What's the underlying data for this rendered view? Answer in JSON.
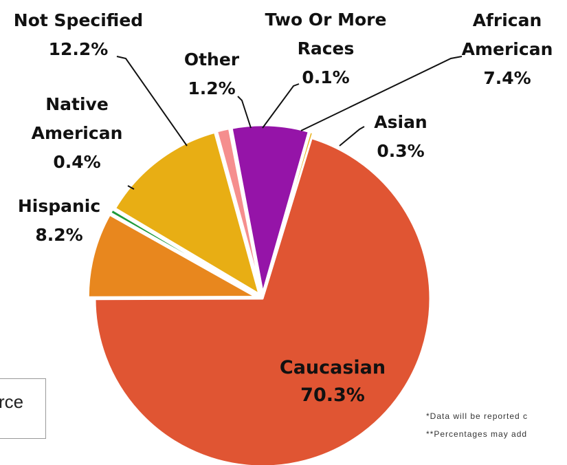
{
  "chart_data": {
    "type": "pie",
    "slices": [
      {
        "label": "Caucasian",
        "label_lines": [
          "Caucasian",
          "70.3%"
        ],
        "value": 70.3,
        "display": "70.3%",
        "color": "#E05533"
      },
      {
        "label": "Hispanic",
        "label_lines": [
          "Hispanic",
          "8.2%"
        ],
        "value": 8.2,
        "display": "8.2%",
        "color": "#E8871E"
      },
      {
        "label": "Native American",
        "label_lines": [
          "Native",
          "American",
          "0.4%"
        ],
        "value": 0.4,
        "display": "0.4%",
        "color": "#1E9A3A"
      },
      {
        "label": "Not Specified",
        "label_lines": [
          "Not Specified",
          "12.2%"
        ],
        "value": 12.2,
        "display": "12.2%",
        "color": "#E8AE14"
      },
      {
        "label": "Other",
        "label_lines": [
          "Other",
          "1.2%"
        ],
        "value": 1.2,
        "display": "1.2%",
        "color": "#F58E8E"
      },
      {
        "label": "Two Or More Races",
        "label_lines": [
          "Two Or More",
          "Races",
          "0.1%"
        ],
        "value": 0.1,
        "display": "0.1%",
        "color": "#B0B0B0"
      },
      {
        "label": "African American",
        "label_lines": [
          "African",
          "American",
          "7.4%"
        ],
        "value": 7.4,
        "display": "7.4%",
        "color": "#9514A8"
      },
      {
        "label": "Asian",
        "label_lines": [
          "Asian",
          "0.3%"
        ],
        "value": 0.3,
        "display": "0.3%",
        "color": "#E8AE14"
      }
    ]
  },
  "footnotes": [
    "*Data will be reported c",
    "**Percentages may add"
  ],
  "side_box": {
    "text": "rce"
  }
}
